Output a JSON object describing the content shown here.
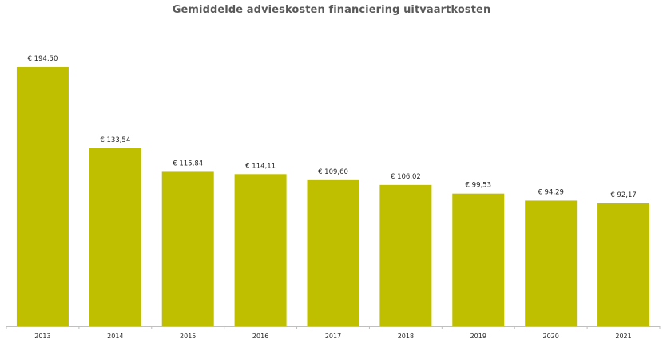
{
  "chart_data": {
    "type": "bar",
    "title": "Gemiddelde advieskosten financiering uitvaartkosten",
    "categories": [
      "2013",
      "2014",
      "2015",
      "2016",
      "2017",
      "2018",
      "2019",
      "2020",
      "2021"
    ],
    "values": [
      194.5,
      133.54,
      115.84,
      114.11,
      109.6,
      106.02,
      99.53,
      94.29,
      92.17
    ],
    "value_labels": [
      "€ 194,50",
      "€ 133,54",
      "€ 115,84",
      "€ 114,11",
      "€ 109,60",
      "€ 106,02",
      "€ 99,53",
      "€ 94,29",
      "€ 92,17"
    ],
    "xlabel": "",
    "ylabel": "",
    "ylim": [
      0,
      194.5
    ],
    "grid": false,
    "legend": "none",
    "bar_color": "#BFBF00",
    "axis_color": "#BFBFBF"
  }
}
